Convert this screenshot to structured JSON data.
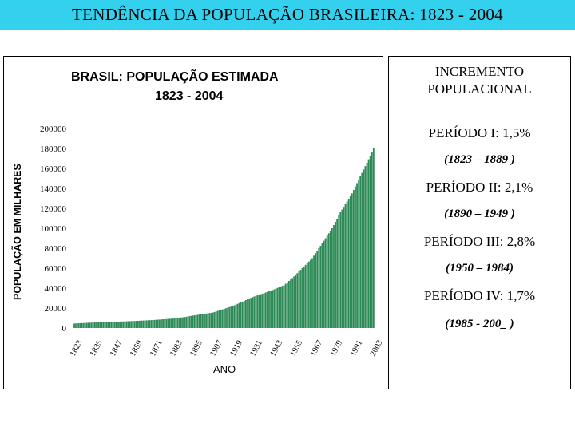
{
  "page": {
    "title": "TENDÊNCIA DA POPULAÇÃO BRASILEIRA:  1823 - 2004",
    "title_bg": "#33d1ee"
  },
  "chart_data": {
    "type": "bar",
    "title": "BRASIL: POPULAÇÃO ESTIMADA",
    "subtitle": "1823 - 2004",
    "xlabel": "ANO",
    "ylabel": "POPULAÇÃO EM MILHARES",
    "ylim": [
      0,
      200000
    ],
    "yticks": [
      "200000",
      "180000",
      "160000",
      "140000",
      "120000",
      "100000",
      "80000",
      "60000",
      "40000",
      "20000",
      "0"
    ],
    "xticks": [
      "1823",
      "1835",
      "1847",
      "1859",
      "1871",
      "1883",
      "1895",
      "1907",
      "1919",
      "1931",
      "1943",
      "1955",
      "1967",
      "1979",
      "1991",
      "2003"
    ],
    "bar_color": "#2e8b57",
    "legend": false,
    "grid": false,
    "series_anchors": [
      [
        1823,
        4500
      ],
      [
        1835,
        5500
      ],
      [
        1847,
        6200
      ],
      [
        1859,
        7000
      ],
      [
        1871,
        8000
      ],
      [
        1883,
        9500
      ],
      [
        1890,
        11000
      ],
      [
        1895,
        12500
      ],
      [
        1907,
        15500
      ],
      [
        1919,
        22000
      ],
      [
        1931,
        31000
      ],
      [
        1943,
        38000
      ],
      [
        1950,
        43000
      ],
      [
        1955,
        50000
      ],
      [
        1967,
        70000
      ],
      [
        1979,
        100000
      ],
      [
        1984,
        116000
      ],
      [
        1991,
        135000
      ],
      [
        2003,
        176000
      ],
      [
        2004,
        180000
      ]
    ]
  },
  "panel": {
    "heading_line1": "INCREMENTO",
    "heading_line2": "POPULACIONAL",
    "periods": [
      {
        "label": "PERÍODO I: 1,5%",
        "range": "(1823 – 1889 )"
      },
      {
        "label": "PERÍODO II: 2,1%",
        "range": "(1890 – 1949 )"
      },
      {
        "label": "PERÍODO III: 2,8%",
        "range": "(1950 – 1984)"
      },
      {
        "label": "PERÍODO IV: 1,7%",
        "range": "(1985 -  200_ )"
      }
    ]
  }
}
